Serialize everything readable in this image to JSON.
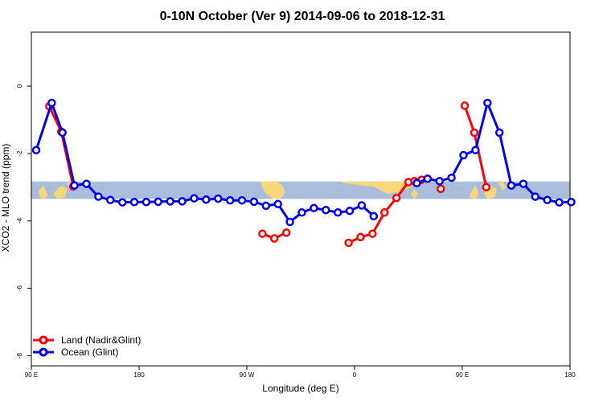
{
  "chart_data": {
    "type": "line",
    "title": "0-10N October (Ver 9)   2014-09-06 to 2018-12-31",
    "xlabel": "Longitude (deg E)",
    "ylabel": "XCO2 - MLO trend (ppm)",
    "xlim": [
      90,
      540
    ],
    "ylim": [
      -8.3,
      1.6
    ],
    "x_ticks": [
      {
        "value": 90,
        "label": "90 E"
      },
      {
        "value": 180,
        "label": "180"
      },
      {
        "value": 270,
        "label": "90 W"
      },
      {
        "value": 360,
        "label": "0"
      },
      {
        "value": 450,
        "label": "90 E"
      },
      {
        "value": 540,
        "label": "180"
      }
    ],
    "y_ticks": [
      {
        "value": 0,
        "label": "0"
      },
      {
        "value": -2,
        "label": "-2"
      },
      {
        "value": -4,
        "label": "-4"
      },
      {
        "value": -6,
        "label": "-6"
      },
      {
        "value": -8,
        "label": "-8"
      }
    ],
    "grid": false,
    "legend_position": "bottom-left",
    "background_band": {
      "y_from": -3.35,
      "y_to": -2.83,
      "ocean_color": "#a8bedc",
      "land_color": "#f7d77a"
    },
    "series": [
      {
        "name": "Land (Nadir&Glint)",
        "color": "#ff0000",
        "x": [
          105,
          107,
          115,
          125,
          145,
          147,
          153,
          435,
          437,
          443,
          465,
          467,
          473
        ],
        "y": [
          null,
          -0.6,
          -1.35,
          -2.98,
          null,
          null,
          null,
          -0.55,
          -1.35,
          -2.98,
          null,
          null,
          null
        ],
        "segments": [
          {
            "x": [
              105,
              115,
              125
            ],
            "y": [
              -0.6,
              -1.35,
              -2.98
            ]
          },
          {
            "x": [
              283,
              293,
              303
            ],
            "y": [
              -4.38,
              -4.52,
              -4.35
            ]
          },
          {
            "x": [
              355,
              365,
              375,
              385,
              395,
              405,
              410,
              416
            ],
            "y": [
              -4.65,
              -4.48,
              -4.38,
              -3.75,
              -3.32,
              -2.85,
              -2.82,
              -2.78
            ]
          },
          {
            "x": [
              432
            ],
            "y": [
              -3.05
            ]
          },
          {
            "x": [
              452,
              460,
              470
            ],
            "y": [
              -0.58,
              -1.38,
              -3.0
            ]
          }
        ]
      },
      {
        "name": "Ocean (Glint)",
        "color": "#0000ee",
        "segments": [
          {
            "x": [
              94,
              107,
              116,
              126,
              136,
              146,
              156,
              166,
              176,
              186,
              196,
              206,
              216,
              226,
              236,
              246,
              256,
              266,
              276,
              286,
              296,
              306,
              316,
              326,
              336,
              346,
              356,
              366,
              376,
              386
            ],
            "y": [
              -1.9,
              -0.5,
              -1.38,
              -2.95,
              -2.9,
              -3.28,
              -3.38,
              -3.45,
              -3.44,
              -3.44,
              -3.43,
              -3.42,
              -3.42,
              -3.33,
              -3.37,
              -3.34,
              -3.39,
              -3.39,
              -3.43,
              -3.55,
              -3.5,
              -4.03,
              -3.75,
              -3.62,
              -3.68,
              -3.75,
              -3.7,
              -3.54,
              -3.86,
              null
            ]
          },
          {
            "x": [
              412,
              421,
              431,
              441,
              451,
              461,
              471,
              481,
              491,
              501,
              511,
              521,
              531,
              541
            ],
            "y": [
              -2.88,
              -2.75,
              -2.82,
              -2.72,
              -2.05,
              -1.9,
              -0.5,
              -1.38,
              -2.95,
              -2.9,
              -3.28,
              -3.38,
              -3.45,
              -3.44
            ]
          }
        ]
      }
    ]
  },
  "colors": {
    "land": "#ff0000",
    "ocean": "#0000ee"
  }
}
